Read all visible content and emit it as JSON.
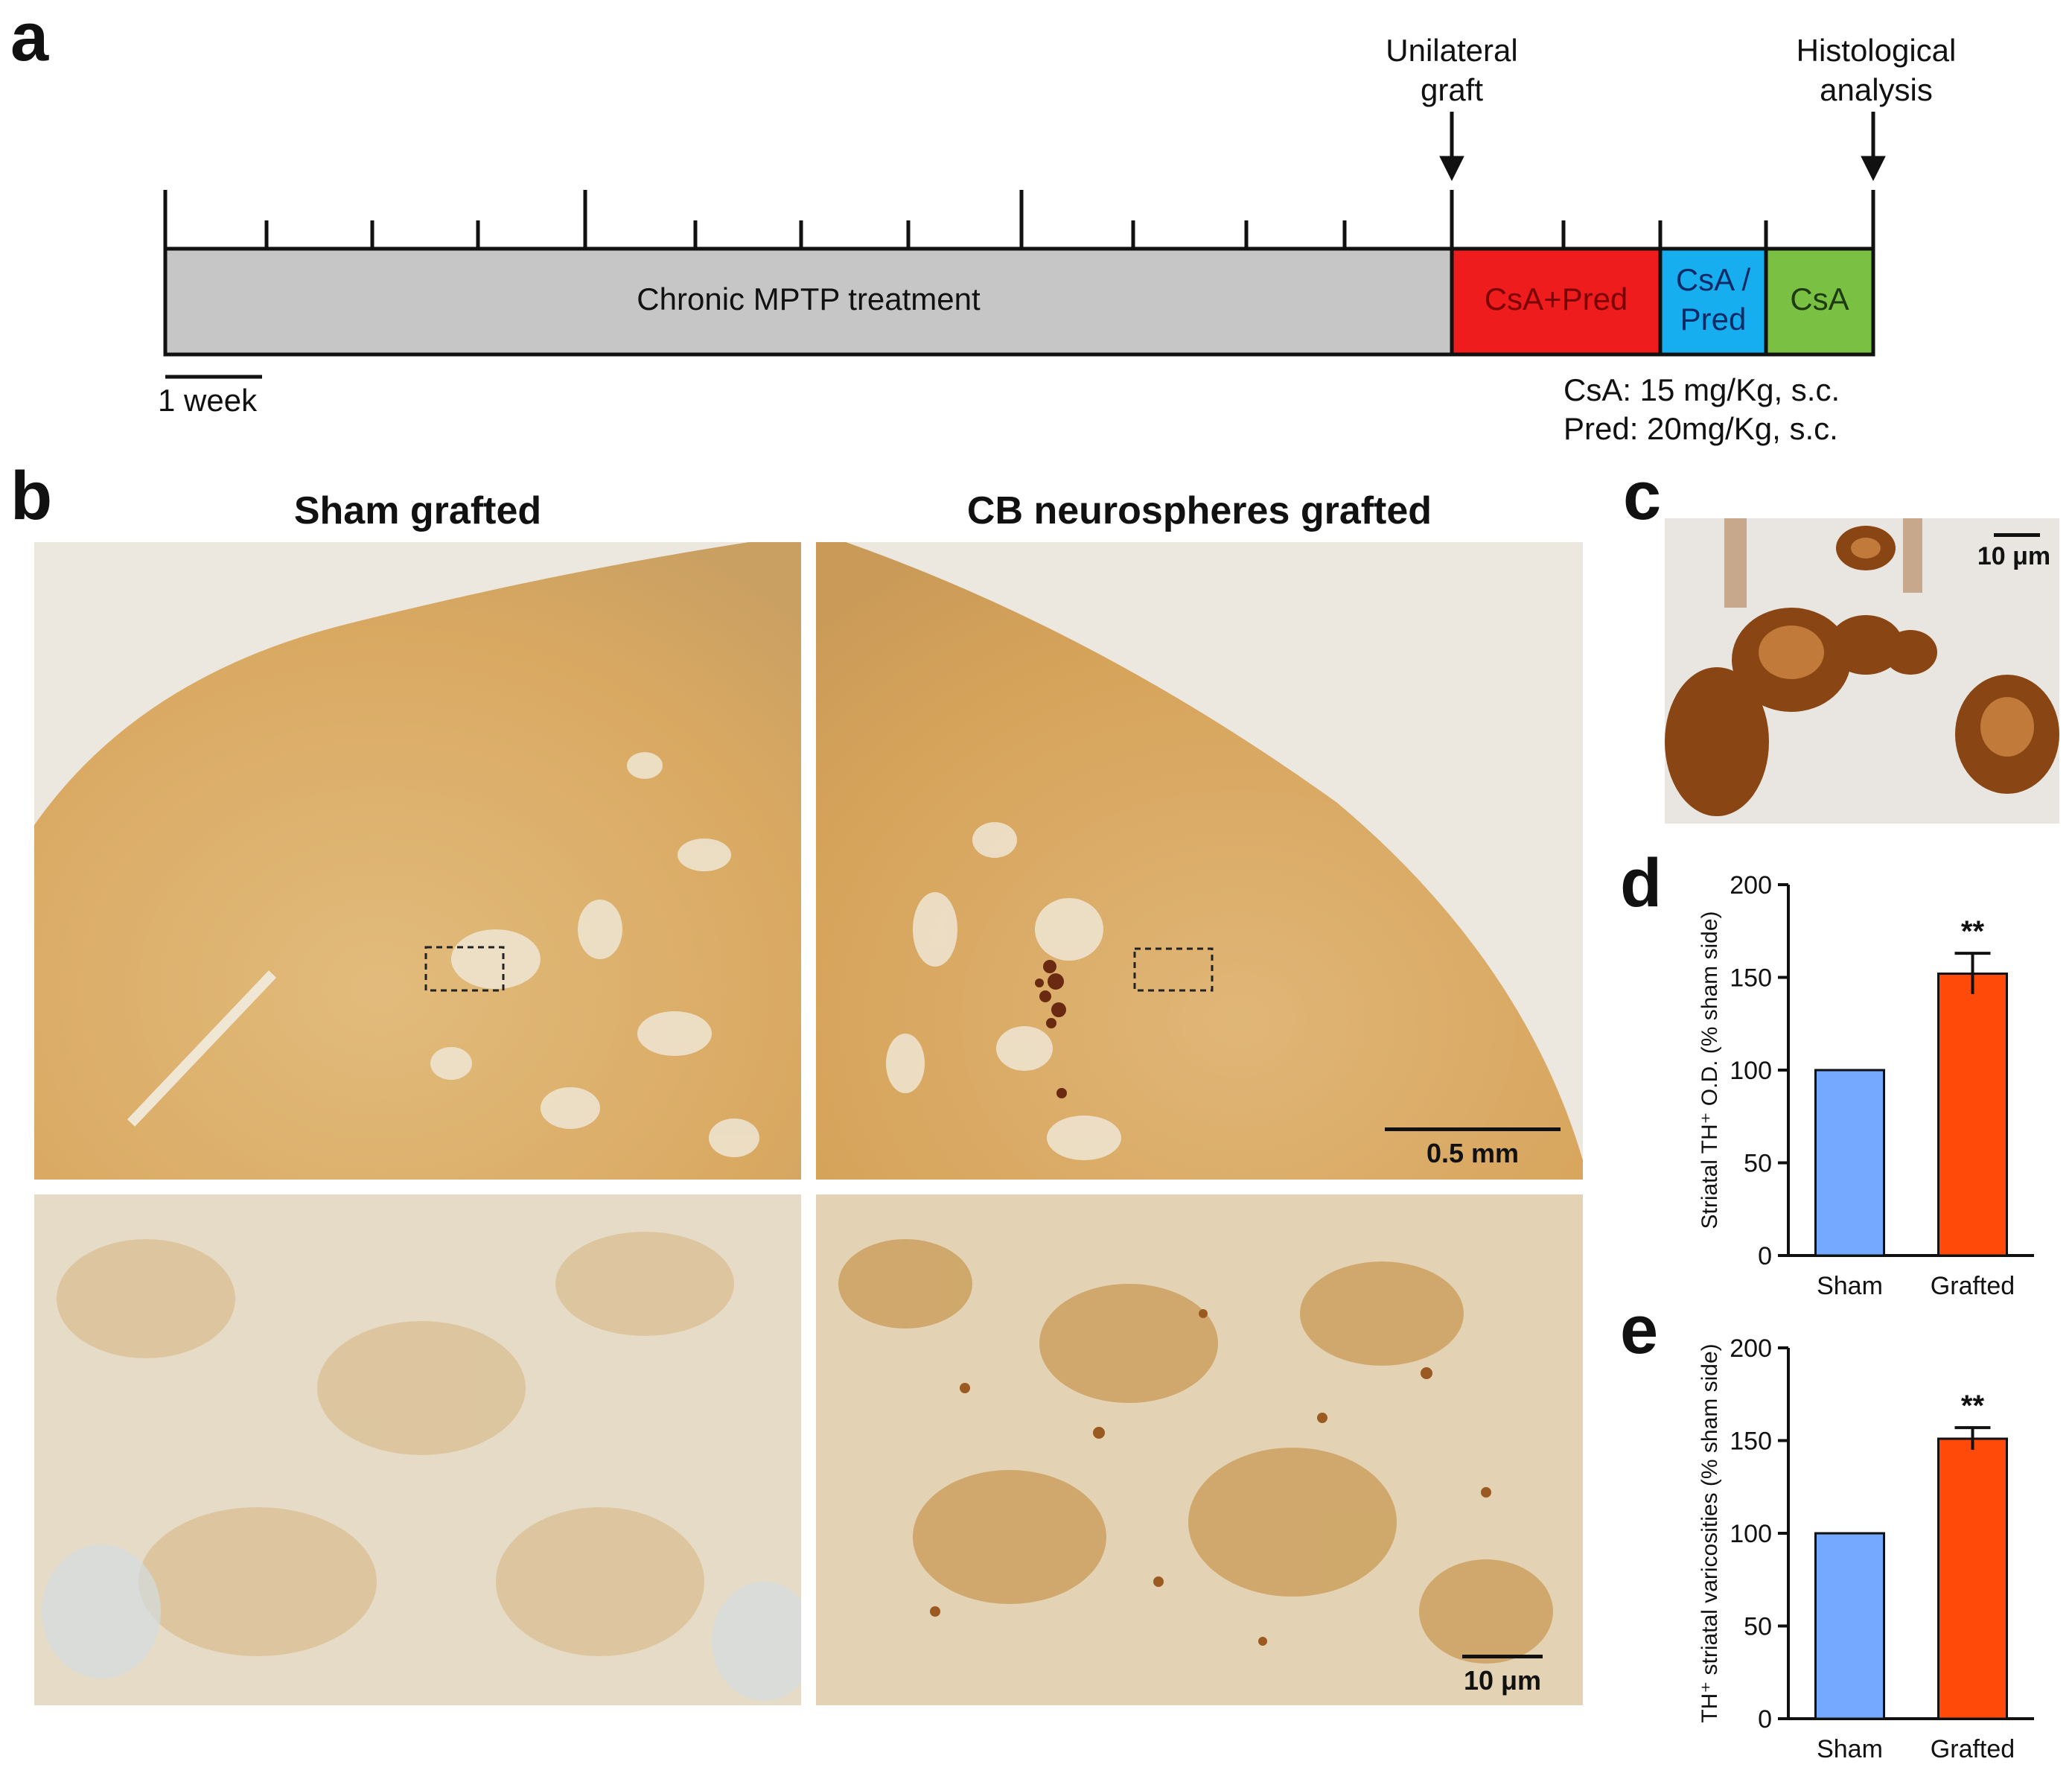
{
  "panels": {
    "a": "a",
    "b": "b",
    "c": "c",
    "d": "d",
    "e": "e"
  },
  "timeline": {
    "event_graft": "Unilateral\ngraft",
    "event_histology": "Histological\nanalysis",
    "segments": [
      {
        "label": "Chronic MPTP treatment",
        "color": "#c6c6c6",
        "text_color": "#222222"
      },
      {
        "label": "CsA+Pred",
        "color": "#ee1c1c",
        "text_color": "#7a0000"
      },
      {
        "label": "CsA /\nPred",
        "color": "#17aef0",
        "text_color": "#0c2a66"
      },
      {
        "label": "CsA",
        "color": "#7ac143",
        "text_color": "#1e3a10"
      }
    ],
    "week_scale": "1 week",
    "dose_csa": "CsA: 15 mg/Kg, s.c.",
    "dose_pred": "Pred: 20mg/Kg, s.c."
  },
  "panel_b": {
    "title_left": "Sham grafted",
    "title_right": "CB neurospheres grafted",
    "scale_top": "0.5 mm",
    "scale_bottom": "10 μm"
  },
  "panel_c": {
    "scale": "10 μm"
  },
  "chart_data": [
    {
      "panel": "d",
      "type": "bar",
      "categories": [
        "Sham",
        "Grafted"
      ],
      "values": [
        100,
        152
      ],
      "error": [
        0,
        11
      ],
      "significance": [
        "",
        "**"
      ],
      "colors": [
        "#74a9ff",
        "#ff4a0a"
      ],
      "ylabel": "Striatal TH⁺ O.D. (% sham side)",
      "ylim": [
        0,
        200
      ],
      "yticks": [
        0,
        50,
        100,
        150,
        200
      ]
    },
    {
      "panel": "e",
      "type": "bar",
      "categories": [
        "Sham",
        "Grafted"
      ],
      "values": [
        100,
        151
      ],
      "error": [
        0,
        6
      ],
      "significance": [
        "",
        "**"
      ],
      "colors": [
        "#74a9ff",
        "#ff4a0a"
      ],
      "ylabel": "TH⁺ striatal varicosities (% sham side)",
      "ylim": [
        0,
        200
      ],
      "yticks": [
        0,
        50,
        100,
        150,
        200
      ]
    }
  ]
}
